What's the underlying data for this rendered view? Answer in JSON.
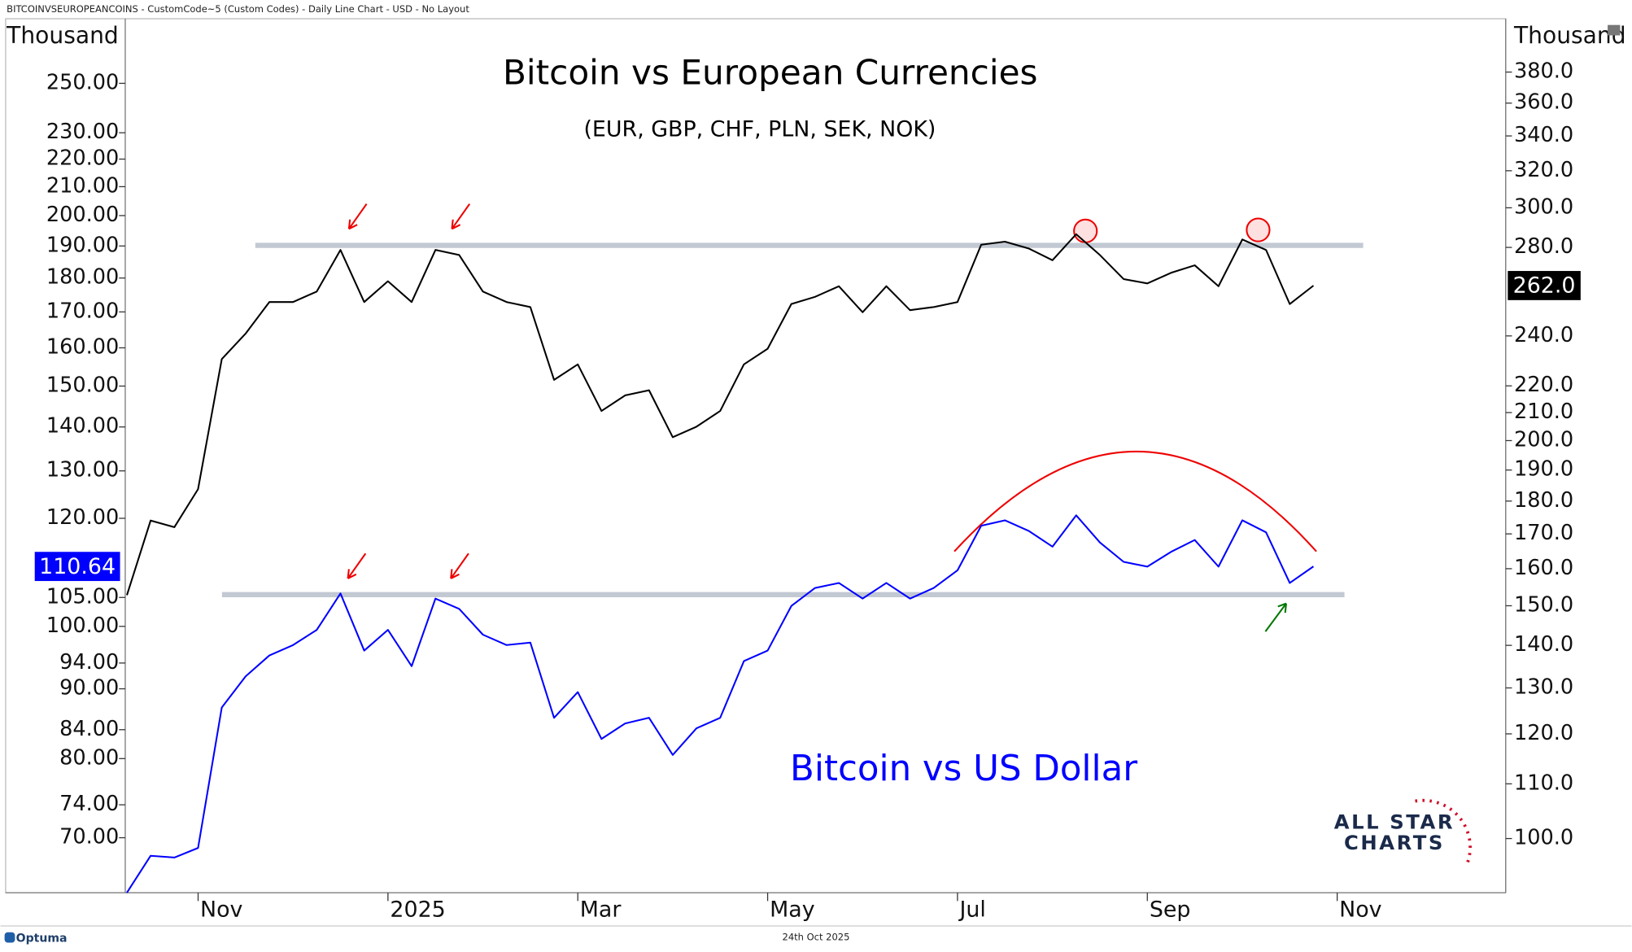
{
  "header": "BITCOINVSEUROPEANCOINS - CustomCode~5 (Custom Codes) - Daily Line Chart - USD - No Layout",
  "footer": {
    "brand": "Optuma",
    "date": "24th Oct 2025"
  },
  "logo": {
    "line1": "ALL STAR",
    "line2": "CHARTS"
  },
  "chart_data": {
    "type": "line",
    "subtitle": "(EUR, GBP, CHF, PLN, SEK, NOK)",
    "ylabel": "Thousand",
    "y2label": "Thousand",
    "log_scale": true,
    "categories": [
      null,
      null,
      null,
      "Nov",
      null,
      null,
      null,
      null,
      null,
      null,
      null,
      "2025",
      null,
      null,
      null,
      null,
      null,
      null,
      null,
      "Mar",
      null,
      null,
      null,
      null,
      null,
      null,
      null,
      "May",
      null,
      null,
      null,
      null,
      null,
      null,
      null,
      "Jul",
      null,
      null,
      null,
      null,
      null,
      null,
      null,
      "Sep",
      null,
      null,
      null,
      null,
      null,
      null,
      null,
      "Nov"
    ],
    "ylim": [
      63.8,
      278.8
    ],
    "yticks": [
      {
        "value": 70,
        "label": "70.00"
      },
      {
        "value": 74,
        "label": "74.00"
      },
      {
        "value": 80,
        "label": "80.00"
      },
      {
        "value": 84,
        "label": "84.00"
      },
      {
        "value": 90,
        "label": "90.00"
      },
      {
        "value": 94,
        "label": "94.00"
      },
      {
        "value": 100,
        "label": "100.00"
      },
      {
        "value": 105,
        "label": "105.00"
      },
      {
        "value": 120,
        "label": "120.00"
      },
      {
        "value": 130,
        "label": "130.00"
      },
      {
        "value": 140,
        "label": "140.00"
      },
      {
        "value": 150,
        "label": "150.00"
      },
      {
        "value": 160,
        "label": "160.00"
      },
      {
        "value": 170,
        "label": "170.00"
      },
      {
        "value": 180,
        "label": "180.00"
      },
      {
        "value": 190,
        "label": "190.00"
      },
      {
        "value": 200,
        "label": "200.00"
      },
      {
        "value": 210,
        "label": "210.00"
      },
      {
        "value": 220,
        "label": "220.00"
      },
      {
        "value": 230,
        "label": "230.00"
      },
      {
        "value": 250,
        "label": "250.00"
      }
    ],
    "y2lim": [
      91,
      417
    ],
    "y2ticks": [
      {
        "value": 100,
        "label": "100.0"
      },
      {
        "value": 110,
        "label": "110.0"
      },
      {
        "value": 120,
        "label": "120.0"
      },
      {
        "value": 130,
        "label": "130.0"
      },
      {
        "value": 140,
        "label": "140.0"
      },
      {
        "value": 150,
        "label": "150.0"
      },
      {
        "value": 160,
        "label": "160.0"
      },
      {
        "value": 170,
        "label": "170.0"
      },
      {
        "value": 180,
        "label": "180.0"
      },
      {
        "value": 190,
        "label": "190.0"
      },
      {
        "value": 200,
        "label": "200.0"
      },
      {
        "value": 210,
        "label": "210.0"
      },
      {
        "value": 220,
        "label": "220.0"
      },
      {
        "value": 240,
        "label": "240.0"
      },
      {
        "value": 280,
        "label": "280.0"
      },
      {
        "value": 300,
        "label": "300.0"
      },
      {
        "value": 320,
        "label": "320.0"
      },
      {
        "value": 340,
        "label": "340.0"
      },
      {
        "value": 360,
        "label": "360.0"
      },
      {
        "value": 380,
        "label": "380.0"
      }
    ],
    "series": [
      {
        "name": "Bitcoin vs European Currencies",
        "color": "#000000",
        "axis": "y2",
        "values": [
          152.8,
          174,
          172,
          183.8,
          230.5,
          241,
          254.6,
          254.6,
          259.3,
          278.8,
          254.6,
          264,
          254.6,
          278.8,
          276.3,
          259.3,
          254.6,
          252.4,
          222.3,
          228.4,
          210.6,
          216.4,
          218.3,
          201.2,
          204.9,
          210.6,
          228.4,
          234.7,
          253.7,
          256.9,
          261.7,
          250.1,
          261.7,
          251,
          252.4,
          254.6,
          281.3,
          282.8,
          279.5,
          273.8,
          286.5,
          276.3,
          265,
          263,
          267.9,
          271.4,
          261.7,
          283.9,
          278.8,
          253.7,
          262.0,
          null
        ],
        "value_labels": [
          null,
          null,
          null,
          null,
          null,
          null,
          null,
          null,
          null,
          null,
          null,
          null,
          null,
          null,
          null,
          null,
          null,
          null,
          null,
          null,
          null,
          null,
          null,
          null,
          null,
          null,
          null,
          null,
          null,
          null,
          null,
          null,
          null,
          null,
          null,
          null,
          null,
          null,
          null,
          null,
          null,
          null,
          null,
          null,
          null,
          null,
          null,
          null,
          null,
          null,
          "262.0",
          null
        ]
      },
      {
        "name": "Bitcoin vs US Dollar",
        "color": "#0000ff",
        "axis": "y",
        "values": [
          63.8,
          67.9,
          67.7,
          68.8,
          87.2,
          91.9,
          95.2,
          96.9,
          99.4,
          105.7,
          96,
          99.4,
          93.5,
          104.8,
          103,
          98.6,
          96.9,
          97.3,
          85.7,
          89.5,
          82.7,
          84.9,
          85.7,
          80.5,
          84.2,
          85.7,
          94.3,
          96,
          103.5,
          106.7,
          107.6,
          104.8,
          107.6,
          104.8,
          106.7,
          109.9,
          118.5,
          119.6,
          117.5,
          114.4,
          120.6,
          115.2,
          111.5,
          110.6,
          113.4,
          115.7,
          110.6,
          119.6,
          117.2,
          107.6,
          110.64,
          null
        ]
      }
    ],
    "levels": [
      {
        "axis": "y2",
        "value": 281
      },
      {
        "axis": "y",
        "value": 105.5
      }
    ]
  }
}
